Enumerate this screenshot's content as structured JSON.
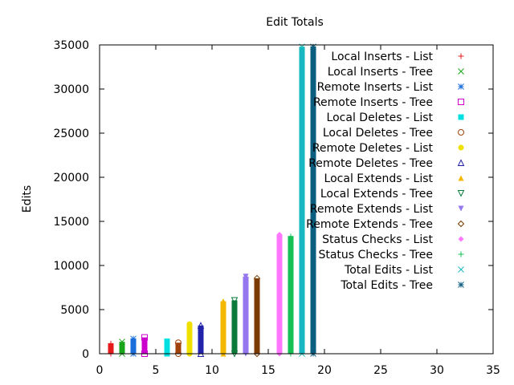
{
  "chart_data": {
    "type": "bar",
    "title": "Edit Totals",
    "xlabel": "",
    "ylabel": "Edits",
    "xlim": [
      0,
      35
    ],
    "ylim": [
      0,
      35000
    ],
    "xticks": [
      0,
      5,
      10,
      15,
      20,
      25,
      30,
      35
    ],
    "yticks": [
      0,
      5000,
      10000,
      15000,
      20000,
      25000,
      30000,
      35000
    ],
    "grid": false,
    "legend_position": "top-right",
    "series": [
      {
        "name": "Local Inserts - List",
        "x": 1,
        "value": 1150,
        "color": "#e41a1c",
        "marker": "plus"
      },
      {
        "name": "Local Inserts - Tree",
        "x": 2,
        "value": 1350,
        "color": "#19a519",
        "marker": "cross"
      },
      {
        "name": "Remote Inserts - List",
        "x": 3,
        "value": 1700,
        "color": "#1a6fdb",
        "marker": "star"
      },
      {
        "name": "Remote Inserts - Tree",
        "x": 4,
        "value": 1850,
        "color": "#cc00cc",
        "marker": "square-open"
      },
      {
        "name": "Local Deletes - List",
        "x": 6,
        "value": 1400,
        "color": "#00e0e0",
        "marker": "square-filled"
      },
      {
        "name": "Local Deletes - Tree",
        "x": 7,
        "value": 1250,
        "color": "#a0420a",
        "marker": "circle-open"
      },
      {
        "name": "Remote Deletes - List",
        "x": 8,
        "value": 3350,
        "color": "#f0e000",
        "marker": "circle-filled"
      },
      {
        "name": "Remote Deletes - Tree",
        "x": 9,
        "value": 3200,
        "color": "#2222aa",
        "marker": "triangle-open"
      },
      {
        "name": "Local Extends - List",
        "x": 11,
        "value": 5950,
        "color": "#f5b800",
        "marker": "triangle-filled"
      },
      {
        "name": "Local Extends - Tree",
        "x": 12,
        "value": 6050,
        "color": "#0b7a3b",
        "marker": "triangle-down-open"
      },
      {
        "name": "Remote Extends - List",
        "x": 13,
        "value": 8750,
        "color": "#9477ee",
        "marker": "triangle-down-filled"
      },
      {
        "name": "Remote Extends - Tree",
        "x": 14,
        "value": 8550,
        "color": "#7b3a00",
        "marker": "diamond-open"
      },
      {
        "name": "Status Checks - List",
        "x": 16,
        "value": 13500,
        "color": "#ff77ff",
        "marker": "diamond-filled"
      },
      {
        "name": "Status Checks - Tree",
        "x": 17,
        "value": 13300,
        "color": "#16c055",
        "marker": "plus"
      },
      {
        "name": "Total Edits - List",
        "x": 18,
        "value": 34800,
        "color": "#17b8c0",
        "marker": "cross"
      },
      {
        "name": "Total Edits - Tree",
        "x": 19,
        "value": 34800,
        "color": "#0b5e80",
        "marker": "star"
      }
    ]
  }
}
